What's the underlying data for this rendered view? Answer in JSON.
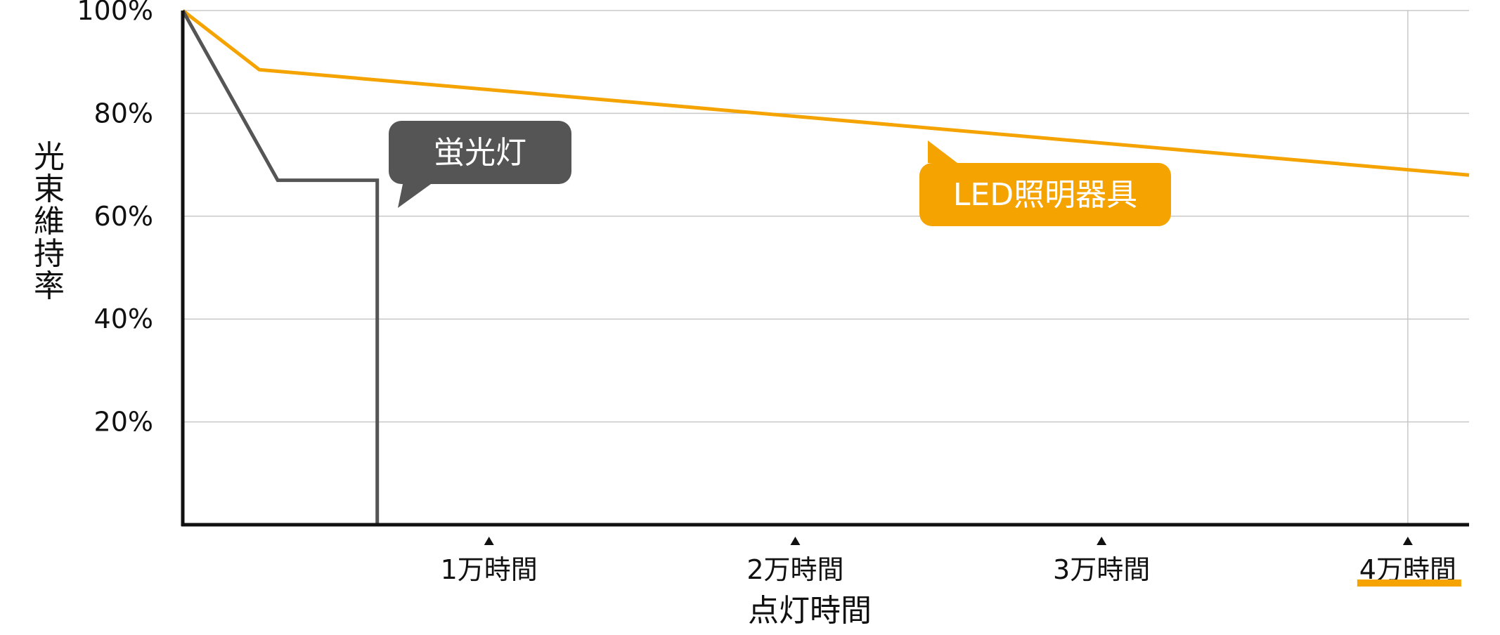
{
  "chart_data": {
    "type": "line",
    "title": "",
    "xlabel": "点灯時間",
    "ylabel": "光束維持率",
    "xlim": [
      0,
      42000
    ],
    "ylim": [
      0,
      100
    ],
    "x_ticks": [
      {
        "value": 10000,
        "label": "1万時間"
      },
      {
        "value": 20000,
        "label": "2万時間"
      },
      {
        "value": 30000,
        "label": "3万時間"
      },
      {
        "value": 40000,
        "label": "4万時間"
      }
    ],
    "y_ticks": [
      {
        "value": 20,
        "label": "20%"
      },
      {
        "value": 40,
        "label": "40%"
      },
      {
        "value": 60,
        "label": "60%"
      },
      {
        "value": 80,
        "label": "80%"
      },
      {
        "value": 100,
        "label": "100%"
      }
    ],
    "highlighted_x_tick": "4万時間",
    "vertical_gridline_at": 40000,
    "grid": true,
    "series": [
      {
        "name": "LED照明器具",
        "color": "#f5a300",
        "x": [
          0,
          2500,
          42000
        ],
        "y": [
          100,
          88.5,
          68
        ]
      },
      {
        "name": "蛍光灯",
        "color": "#555555",
        "x": [
          0,
          3100,
          6350,
          6350
        ],
        "y": [
          100,
          67,
          67,
          0
        ]
      }
    ],
    "annotations": [
      {
        "text": "蛍光灯",
        "series": "蛍光灯",
        "color": "#555555"
      },
      {
        "text": "LED照明器具",
        "series": "LED照明器具",
        "color": "#f5a300"
      }
    ]
  }
}
